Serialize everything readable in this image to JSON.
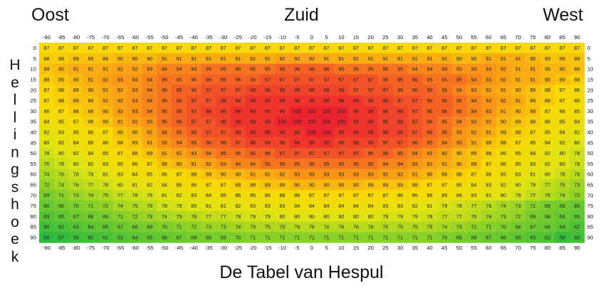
{
  "header": {
    "left": "Oost",
    "center": "Zuid",
    "right": "West"
  },
  "chart_data": {
    "type": "heatmap",
    "title": "De Tabel van Hespul",
    "xlabel": "",
    "ylabel": "Hellingshoek",
    "x": [
      -90,
      -85,
      -80,
      -75,
      -70,
      -65,
      -60,
      -55,
      -50,
      -45,
      -40,
      -35,
      -30,
      -25,
      -20,
      -15,
      -10,
      -5,
      0,
      5,
      10,
      15,
      20,
      25,
      30,
      35,
      40,
      45,
      50,
      55,
      60,
      65,
      70,
      75,
      80,
      85,
      90
    ],
    "y": [
      0,
      5,
      10,
      15,
      20,
      25,
      30,
      35,
      40,
      45,
      50,
      55,
      60,
      65,
      70,
      75,
      80,
      85,
      90
    ],
    "values": [
      [
        87,
        87,
        87,
        87,
        87,
        87,
        87,
        87,
        87,
        87,
        87,
        87,
        87,
        87,
        87,
        87,
        87,
        87,
        87,
        87,
        87,
        87,
        87,
        87,
        87,
        87,
        87,
        87,
        87,
        87,
        87,
        87,
        87,
        87,
        87,
        87,
        87
      ],
      [
        88,
        88,
        89,
        89,
        89,
        90,
        90,
        90,
        91,
        91,
        91,
        91,
        91,
        91,
        91,
        91,
        92,
        92,
        92,
        91,
        91,
        91,
        91,
        91,
        91,
        91,
        91,
        91,
        90,
        90,
        91,
        91,
        91,
        90,
        89,
        89,
        89
      ],
      [
        89,
        90,
        91,
        91,
        91,
        92,
        92,
        93,
        94,
        94,
        94,
        95,
        95,
        95,
        95,
        95,
        96,
        96,
        96,
        96,
        95,
        95,
        95,
        95,
        95,
        94,
        94,
        94,
        93,
        93,
        93,
        92,
        91,
        91,
        90,
        90,
        89
      ],
      [
        88,
        89,
        90,
        91,
        92,
        93,
        93,
        94,
        95,
        95,
        95,
        96,
        96,
        96,
        96,
        97,
        97,
        97,
        97,
        97,
        97,
        97,
        97,
        96,
        96,
        96,
        95,
        95,
        95,
        94,
        93,
        92,
        91,
        91,
        90,
        89,
        88
      ],
      [
        87,
        88,
        89,
        90,
        91,
        92,
        93,
        94,
        95,
        96,
        96,
        97,
        97,
        97,
        98,
        98,
        98,
        98,
        98,
        98,
        98,
        97,
        97,
        97,
        96,
        96,
        96,
        95,
        94,
        93,
        92,
        91,
        90,
        89,
        88,
        87,
        86
      ],
      [
        87,
        88,
        89,
        89,
        91,
        92,
        93,
        94,
        95,
        96,
        97,
        97,
        98,
        98,
        99,
        99,
        99,
        99,
        99,
        99,
        99,
        99,
        98,
        98,
        97,
        97,
        96,
        96,
        95,
        94,
        93,
        92,
        91,
        89,
        88,
        87,
        86
      ],
      [
        86,
        87,
        88,
        89,
        90,
        92,
        93,
        94,
        95,
        96,
        97,
        98,
        98,
        99,
        99,
        99,
        99,
        100,
        100,
        100,
        100,
        99,
        99,
        98,
        98,
        97,
        96,
        96,
        95,
        94,
        93,
        91,
        90,
        89,
        87,
        86,
        85
      ],
      [
        84,
        85,
        87,
        88,
        89,
        91,
        92,
        93,
        95,
        96,
        97,
        97,
        98,
        99,
        99,
        99,
        100,
        100,
        100,
        100,
        100,
        99,
        99,
        98,
        98,
        97,
        96,
        95,
        94,
        93,
        92,
        90,
        89,
        88,
        86,
        85,
        84
      ],
      [
        82,
        83,
        85,
        86,
        87,
        89,
        90,
        92,
        94,
        95,
        96,
        97,
        97,
        98,
        99,
        99,
        99,
        99,
        100,
        100,
        99,
        99,
        99,
        98,
        98,
        97,
        96,
        95,
        93,
        92,
        91,
        89,
        88,
        87,
        85,
        84,
        82
      ],
      [
        80,
        82,
        84,
        85,
        86,
        88,
        89,
        91,
        93,
        94,
        95,
        96,
        96,
        97,
        98,
        98,
        98,
        99,
        99,
        99,
        98,
        98,
        98,
        97,
        97,
        96,
        95,
        94,
        93,
        91,
        89,
        88,
        87,
        85,
        84,
        82,
        80
      ],
      [
        78,
        80,
        82,
        84,
        85,
        87,
        88,
        89,
        91,
        92,
        93,
        94,
        95,
        95,
        96,
        96,
        97,
        97,
        97,
        97,
        97,
        97,
        96,
        96,
        95,
        94,
        93,
        92,
        90,
        89,
        88,
        86,
        85,
        84,
        82,
        80,
        78
      ],
      [
        76,
        78,
        80,
        82,
        83,
        85,
        86,
        87,
        89,
        90,
        91,
        92,
        93,
        94,
        94,
        95,
        95,
        95,
        95,
        95,
        95,
        95,
        95,
        94,
        94,
        93,
        92,
        91,
        90,
        89,
        87,
        86,
        85,
        83,
        82,
        80,
        78
      ],
      [
        74,
        76,
        78,
        79,
        81,
        83,
        84,
        85,
        86,
        87,
        88,
        89,
        90,
        90,
        91,
        91,
        92,
        93,
        93,
        93,
        93,
        93,
        93,
        92,
        92,
        91,
        90,
        89,
        88,
        87,
        86,
        85,
        83,
        81,
        80,
        78,
        76
      ],
      [
        72,
        74,
        76,
        77,
        78,
        80,
        81,
        82,
        84,
        85,
        86,
        87,
        87,
        88,
        88,
        89,
        89,
        90,
        90,
        90,
        90,
        90,
        89,
        89,
        89,
        88,
        87,
        87,
        85,
        84,
        83,
        82,
        80,
        79,
        77,
        75,
        73
      ],
      [
        69,
        71,
        73,
        74,
        75,
        77,
        78,
        79,
        81,
        82,
        83,
        84,
        85,
        85,
        85,
        86,
        86,
        86,
        87,
        87,
        87,
        87,
        87,
        87,
        86,
        86,
        86,
        85,
        84,
        83,
        81,
        80,
        79,
        77,
        76,
        74,
        72
      ],
      [
        66,
        68,
        70,
        71,
        72,
        74,
        75,
        76,
        78,
        79,
        80,
        81,
        81,
        82,
        83,
        83,
        83,
        84,
        84,
        84,
        84,
        84,
        84,
        83,
        83,
        82,
        81,
        79,
        78,
        77,
        76,
        74,
        73,
        71,
        69,
        68,
        66
      ],
      [
        63,
        65,
        67,
        68,
        69,
        71,
        72,
        73,
        74,
        75,
        76,
        77,
        77,
        78,
        79,
        79,
        80,
        80,
        80,
        80,
        80,
        80,
        80,
        79,
        79,
        79,
        78,
        77,
        77,
        76,
        74,
        73,
        72,
        69,
        68,
        66,
        65
      ],
      [
        60,
        61,
        63,
        64,
        65,
        67,
        68,
        69,
        70,
        71,
        72,
        73,
        73,
        74,
        75,
        75,
        75,
        76,
        76,
        76,
        76,
        76,
        76,
        75,
        75,
        75,
        75,
        74,
        73,
        72,
        71,
        70,
        68,
        67,
        66,
        64,
        62
      ],
      [
        56,
        57,
        59,
        60,
        61,
        63,
        64,
        65,
        66,
        67,
        68,
        69,
        69,
        70,
        71,
        71,
        71,
        71,
        71,
        71,
        71,
        71,
        71,
        71,
        71,
        71,
        71,
        70,
        69,
        68,
        67,
        66,
        65,
        63,
        62,
        58,
        60
      ]
    ]
  }
}
